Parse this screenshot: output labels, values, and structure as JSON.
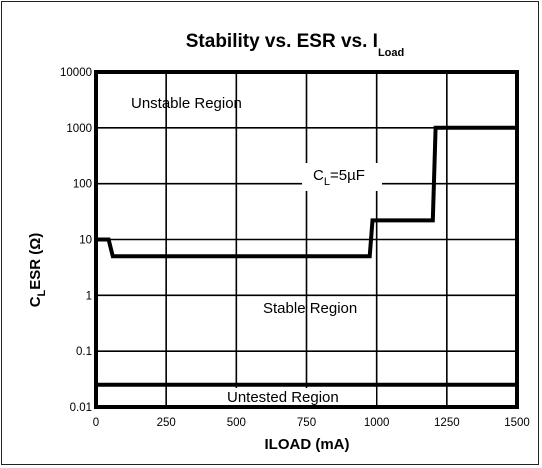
{
  "chart_data": {
    "type": "line",
    "title": {
      "main": "Stability vs. ESR vs. I",
      "sub": "Load"
    },
    "xlabel": "ILOAD (mA)",
    "ylabel": {
      "main": "C",
      "sub": "L",
      "rest": "ESR (Ω)"
    },
    "xlim": [
      0,
      1500
    ],
    "ylim": [
      0.01,
      10000
    ],
    "y_scale": "log",
    "grid": true,
    "x_ticks": [
      "0",
      "250",
      "500",
      "750",
      "1000",
      "1250",
      "1500"
    ],
    "y_ticks": [
      "0.01",
      "0.1",
      "1",
      "10",
      "100",
      "1000",
      "10000"
    ],
    "series": [
      {
        "name": "",
        "x": [
          0,
          45,
          60,
          975,
          985,
          1200,
          1210,
          1500
        ],
        "y": [
          10,
          10,
          5,
          5,
          22,
          22,
          1000,
          1000
        ]
      }
    ],
    "untested_boundary": 0.025,
    "annotations": {
      "unstable": "Unstable Region",
      "stable": "Stable Region",
      "untested": "Untested Region",
      "cl_label": {
        "main": "C",
        "sub": "L",
        "rest": "=5µF"
      }
    }
  }
}
